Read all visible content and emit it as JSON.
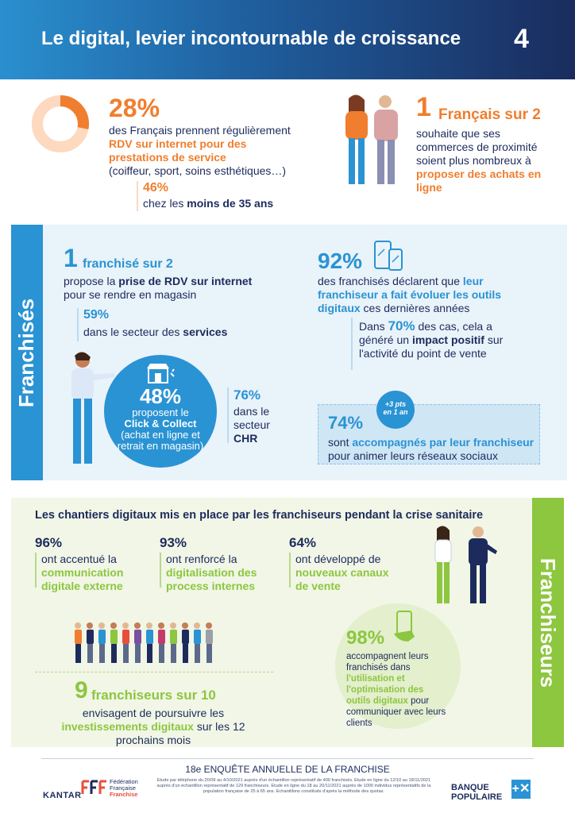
{
  "header": {
    "title": "Le digital, levier incontournable de croissance",
    "page_number": "4"
  },
  "stat_rdv": {
    "value": "28%",
    "line1": "des Français prennent régulièrement",
    "highlight": "RDV sur internet pour des prestations de service",
    "line3": "(coiffeur, sport, soins esthétiques…)",
    "sub_value": "46%",
    "sub_text_pre": "chez les ",
    "sub_text_bold": "moins de 35 ans",
    "donut_percent": 28
  },
  "stat_proximite": {
    "value": "1",
    "value_suffix": "Français sur 2",
    "text": "souhaite que ses commerces de proximité soient plus nombreux à",
    "highlight": "proposer des achats en ligne"
  },
  "franchises": {
    "side_label": "Franchisés",
    "rdv": {
      "value": "1",
      "value_suffix": "franchisé sur 2",
      "text_pre": "propose la ",
      "text_bold": "prise de RDV sur internet",
      "text_post": " pour se rendre en magasin",
      "sub_value": "59%",
      "sub_text_pre": "dans le secteur des ",
      "sub_text_bold": "services"
    },
    "click_collect": {
      "value": "48%",
      "line1": "proposent le",
      "bold": "Click & Collect",
      "detail": "(achat en ligne et retrait en magasin)",
      "chr_value": "76%",
      "chr_text": "dans le secteur",
      "chr_bold": "CHR"
    },
    "outils": {
      "value": "92%",
      "text_pre": "des franchisés déclarent que ",
      "highlight": "leur franchiseur a fait évoluer les outils digitaux",
      "text_post": " ces dernières années",
      "sub_pre": "Dans ",
      "sub_value": "70%",
      "sub_mid": " des cas, cela a généré un ",
      "sub_bold": "impact positif",
      "sub_post": " sur l'activité du point de vente"
    },
    "reseaux": {
      "value": "74%",
      "pre": "sont ",
      "highlight": "accompagnés par leur franchiseur",
      "post": "pour animer leurs réseaux sociaux",
      "badge_line1": "+3 pts",
      "badge_line2": "en 1 an"
    }
  },
  "franchiseurs": {
    "side_label": "Franchiseurs",
    "heading": "Les chantiers digitaux mis en place par les franchiseurs pendant la crise sanitaire",
    "items": [
      {
        "value": "96%",
        "text": "ont accentué la",
        "highlight": "communication digitale externe"
      },
      {
        "value": "93%",
        "text": "ont renforcé la",
        "highlight": "digitalisation des process internes"
      },
      {
        "value": "64%",
        "text": "ont développé de",
        "highlight": "nouveaux canaux de vente"
      }
    ],
    "investissements": {
      "value": "9",
      "value_suffix": "franchiseurs sur 10",
      "text_pre": "envisagent de poursuivre les ",
      "highlight": "investissements digitaux",
      "text_post": " sur les 12 prochains mois"
    },
    "accompagnement": {
      "value": "98%",
      "text_pre": "accompagnent leurs franchisés dans ",
      "highlight": "l'utilisation et l'optimisation des outils digitaux",
      "text_post": " pour communiquer avec leurs clients"
    }
  },
  "footer": {
    "title": "18e ENQUÊTE ANNUELLE DE LA FRANCHISE",
    "kantar": "KANTAR",
    "fff_line1": "Fédération",
    "fff_line2": "Française",
    "fff_line3": "Franchise",
    "method": "Etude par téléphone du 20/09 au 4/10/2021 auprès d'un échantillon représentatif de 400 franchisés. Etude en ligne du 12/10 au 18/11/2021 auprès d'un échantillon représentatif de 129 franchiseurs. Etude en ligne du 18 au 20/11/2021 auprès de 1000 individus représentatifs de la population française de 25 à 65 ans. Echantillons constitués d'après la méthode des quotas.",
    "bank_line1": "BANQUE",
    "bank_line2": "POPULAIRE"
  },
  "colors": {
    "orange": "#f07e2e",
    "blue": "#2a93d3",
    "green": "#8dc63f",
    "navy": "#1d2b5c"
  }
}
